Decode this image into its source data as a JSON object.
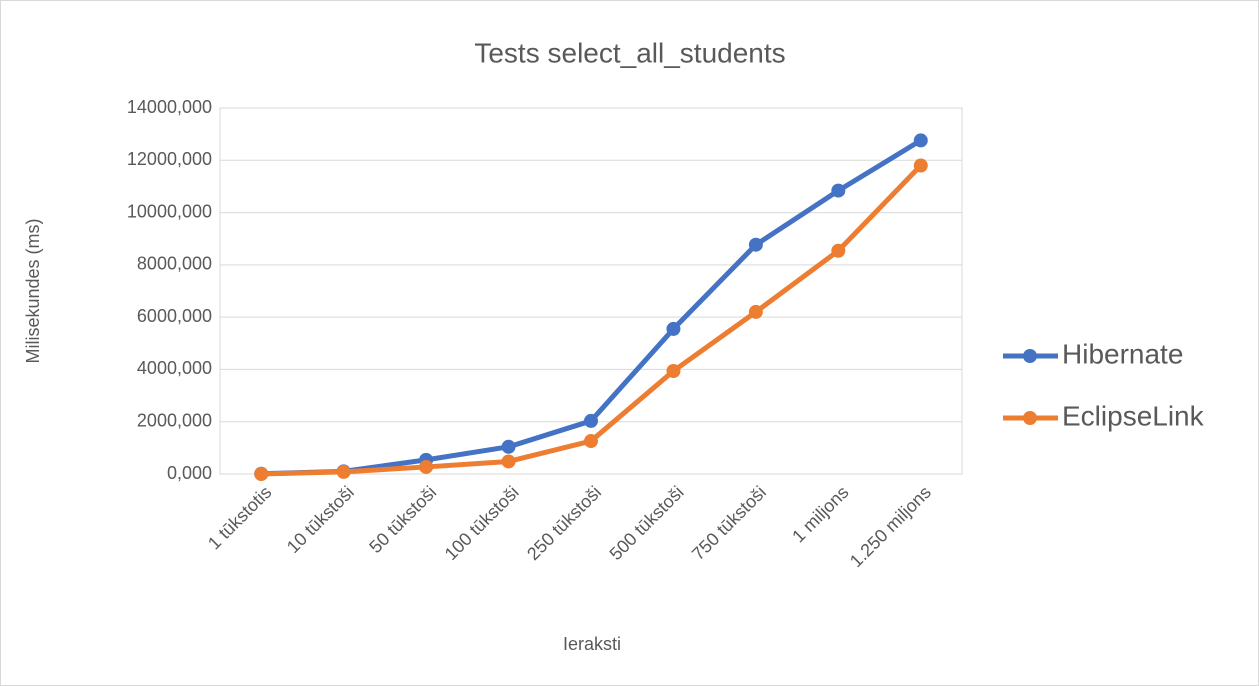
{
  "chart_data": {
    "type": "line",
    "title": "Tests select_all_students",
    "x_label": "Ieraksti",
    "y_label": "Milisekundes (ms)",
    "categories": [
      "1 tūkstotis",
      "10 tūkstoši",
      "50 tūkstoši",
      "100 tūkstoši",
      "250 tūkstoši",
      "500 tūkstoši",
      "750 tūkstoši",
      "1 miljons",
      "1.250 miljons"
    ],
    "series": [
      {
        "name": "Hibernate",
        "color": "#4472c4",
        "values": [
          10,
          100,
          540,
          1040,
          2030,
          5550,
          8770,
          10840,
          12760
        ]
      },
      {
        "name": "EclipseLink",
        "color": "#ed7d31",
        "values": [
          0,
          80,
          270,
          480,
          1260,
          3940,
          6200,
          8540,
          11800
        ]
      }
    ],
    "ylim": [
      0,
      14000
    ],
    "yticks": [
      {
        "value": 0,
        "label": "0,000"
      },
      {
        "value": 2000,
        "label": "2000,000"
      },
      {
        "value": 4000,
        "label": "4000,000"
      },
      {
        "value": 6000,
        "label": "6000,000"
      },
      {
        "value": 8000,
        "label": "8000,000"
      },
      {
        "value": 10000,
        "label": "10000,000"
      },
      {
        "value": 12000,
        "label": "12000,000"
      },
      {
        "value": 14000,
        "label": "14000,000"
      }
    ],
    "grid": true,
    "legend": "right"
  }
}
